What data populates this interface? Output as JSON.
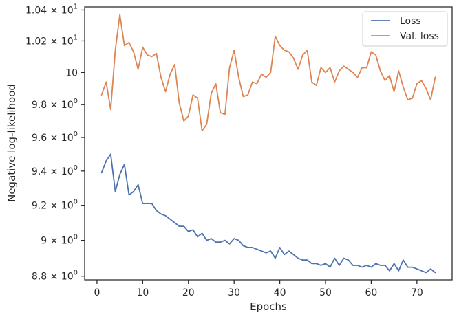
{
  "chart_data": {
    "type": "line",
    "xlabel": "Epochs",
    "ylabel": "Negative log-likelihood",
    "xlim": [
      -2.7,
      77.7
    ],
    "ylim": [
      8.78,
      10.42
    ],
    "y_scale": "log",
    "grid": false,
    "legend_position": "top-right",
    "x_ticks": [
      {
        "value": 0,
        "label": "0"
      },
      {
        "value": 10,
        "label": "10"
      },
      {
        "value": 20,
        "label": "20"
      },
      {
        "value": 30,
        "label": "30"
      },
      {
        "value": 40,
        "label": "40"
      },
      {
        "value": 50,
        "label": "50"
      },
      {
        "value": 60,
        "label": "60"
      },
      {
        "value": 70,
        "label": "70"
      }
    ],
    "y_ticks": [
      {
        "value": 8.8,
        "mantissa": "8.8",
        "has_exp": true
      },
      {
        "value": 9.0,
        "mantissa": "9",
        "has_exp": true
      },
      {
        "value": 9.2,
        "mantissa": "9.2",
        "has_exp": true
      },
      {
        "value": 9.4,
        "mantissa": "9.4",
        "has_exp": true
      },
      {
        "value": 9.6,
        "mantissa": "9.6",
        "has_exp": true
      },
      {
        "value": 9.8,
        "mantissa": "9.8",
        "has_exp": true
      },
      {
        "value": 10.0,
        "mantissa": "10",
        "has_exp": false
      },
      {
        "value": 10.2,
        "mantissa": "1.02",
        "has_exp": true
      },
      {
        "value": 10.4,
        "mantissa": "1.04",
        "has_exp": true
      }
    ],
    "y_tick_mult": "×",
    "y_tick_base": "10",
    "y_tick_exponent": "0",
    "y_tick_exponent_big": "1",
    "series": [
      {
        "name": "Loss",
        "color": "#4c72b0",
        "x": [
          1,
          2,
          3,
          4,
          5,
          6,
          7,
          8,
          9,
          10,
          11,
          12,
          13,
          14,
          15,
          16,
          17,
          18,
          19,
          20,
          21,
          22,
          23,
          24,
          25,
          26,
          27,
          28,
          29,
          30,
          31,
          32,
          33,
          34,
          35,
          36,
          37,
          38,
          39,
          40,
          41,
          42,
          43,
          44,
          45,
          46,
          47,
          48,
          49,
          50,
          51,
          52,
          53,
          54,
          55,
          56,
          57,
          58,
          59,
          60,
          61,
          62,
          63,
          64,
          65,
          66,
          67,
          68,
          69,
          70,
          71,
          72,
          73,
          74
        ],
        "y": [
          9.39,
          9.46,
          9.5,
          9.28,
          9.38,
          9.44,
          9.26,
          9.28,
          9.32,
          9.21,
          9.21,
          9.21,
          9.17,
          9.15,
          9.14,
          9.12,
          9.1,
          9.08,
          9.08,
          9.05,
          9.06,
          9.02,
          9.04,
          9.0,
          9.01,
          8.99,
          8.99,
          9.0,
          8.98,
          9.01,
          9.0,
          8.97,
          8.96,
          8.96,
          8.95,
          8.94,
          8.93,
          8.94,
          8.9,
          8.96,
          8.92,
          8.94,
          8.92,
          8.9,
          8.89,
          8.89,
          8.87,
          8.87,
          8.86,
          8.87,
          8.85,
          8.9,
          8.86,
          8.9,
          8.89,
          8.86,
          8.86,
          8.85,
          8.86,
          8.85,
          8.87,
          8.86,
          8.86,
          8.83,
          8.87,
          8.83,
          8.89,
          8.85,
          8.85,
          8.84,
          8.83,
          8.82,
          8.84,
          8.82
        ]
      },
      {
        "name": "Val. loss",
        "color": "#dd8452",
        "x": [
          1,
          2,
          3,
          4,
          5,
          6,
          7,
          8,
          9,
          10,
          11,
          12,
          13,
          14,
          15,
          16,
          17,
          18,
          19,
          20,
          21,
          22,
          23,
          24,
          25,
          26,
          27,
          28,
          29,
          30,
          31,
          32,
          33,
          34,
          35,
          36,
          37,
          38,
          39,
          40,
          41,
          42,
          43,
          44,
          45,
          46,
          47,
          48,
          49,
          50,
          51,
          52,
          53,
          54,
          55,
          56,
          57,
          58,
          59,
          60,
          61,
          62,
          63,
          64,
          65,
          66,
          67,
          68,
          69,
          70,
          71,
          72,
          73,
          74
        ],
        "y": [
          9.86,
          9.94,
          9.77,
          10.14,
          10.37,
          10.17,
          10.19,
          10.13,
          10.02,
          10.16,
          10.11,
          10.1,
          10.12,
          9.97,
          9.88,
          9.99,
          10.05,
          9.81,
          9.7,
          9.73,
          9.86,
          9.84,
          9.64,
          9.68,
          9.87,
          9.93,
          9.75,
          9.74,
          10.03,
          10.14,
          9.97,
          9.85,
          9.86,
          9.94,
          9.93,
          9.99,
          9.97,
          10.0,
          10.23,
          10.17,
          10.14,
          10.13,
          10.09,
          10.02,
          10.11,
          10.14,
          9.94,
          9.92,
          10.03,
          10.0,
          10.03,
          9.94,
          10.01,
          10.04,
          10.02,
          10.0,
          9.97,
          10.03,
          10.03,
          10.13,
          10.11,
          10.01,
          9.95,
          9.98,
          9.88,
          10.01,
          9.91,
          9.83,
          9.84,
          9.93,
          9.95,
          9.9,
          9.83,
          9.97
        ]
      }
    ]
  }
}
